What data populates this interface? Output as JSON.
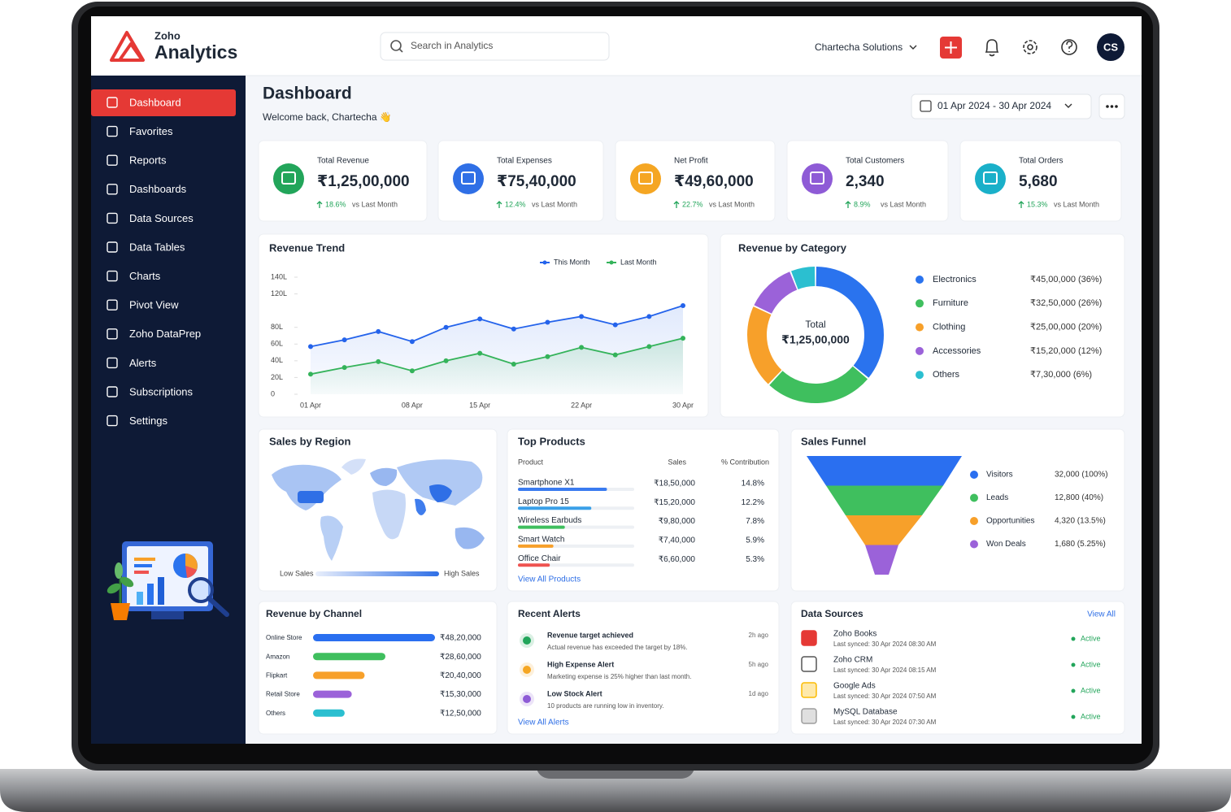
{
  "header": {
    "brand_small": "Zoho",
    "brand": "Analytics",
    "search": "Search in Analytics",
    "org": "Chartecha Solutions",
    "avatar": "CS"
  },
  "sidebar": {
    "items": [
      "Dashboard",
      "Favorites",
      "Reports",
      "Dashboards",
      "Data Sources",
      "Data Tables",
      "Charts",
      "Pivot View",
      "Zoho DataPrep",
      "Alerts",
      "Subscriptions",
      "Settings"
    ]
  },
  "page": {
    "title": "Dashboard",
    "welcome": "Welcome back, Chartecha 👋",
    "date_range": "01 Apr 2024 - 30 Apr 2024"
  },
  "kpis": [
    {
      "label": "Total Revenue",
      "value": "₹1,25,00,000",
      "change": "18.6%",
      "compare": "vs Last Month",
      "color": "#22a55a"
    },
    {
      "label": "Total Expenses",
      "value": "₹75,40,000",
      "change": "12.4%",
      "compare": "vs Last Month",
      "color": "#2f6fe6"
    },
    {
      "label": "Net Profit",
      "value": "₹49,60,000",
      "change": "22.7%",
      "compare": "vs Last Month",
      "color": "#f5a623"
    },
    {
      "label": "Total Customers",
      "value": "2,340",
      "change": "8.9%",
      "compare": "vs Last Month",
      "color": "#8e5bd6"
    },
    {
      "label": "Total Orders",
      "value": "5,680",
      "change": "15.3%",
      "compare": "vs Last Month",
      "color": "#1ab0c9"
    }
  ],
  "revenue_trend": {
    "type": "line",
    "title": "Revenue Trend",
    "categories": [
      "01 Apr",
      null,
      null,
      "08 Apr",
      null,
      "15 Apr",
      null,
      null,
      "22 Apr",
      null,
      null,
      "30 Apr"
    ],
    "series": [
      {
        "name": "This Month",
        "color": "#2463eb",
        "values": [
          57,
          65,
          75,
          63,
          80,
          90,
          78,
          86,
          93,
          83,
          93,
          106
        ]
      },
      {
        "name": "Last Month",
        "color": "#34b35a",
        "values": [
          24,
          32,
          39,
          28,
          40,
          49,
          36,
          45,
          56,
          47,
          57,
          67
        ]
      }
    ],
    "ylim": [
      0,
      140
    ],
    "yticks": [
      0,
      {
        "value": 20,
        "label": "20L"
      },
      {
        "value": 40,
        "label": "40L"
      },
      {
        "value": 60,
        "label": "60L"
      },
      {
        "value": 80,
        "label": "80L"
      },
      {
        "value": 120,
        "label": "120L"
      },
      {
        "value": 140,
        "label": "140L"
      }
    ],
    "grid": false
  },
  "revenue_by_category": {
    "type": "donut",
    "title": "Revenue by Category",
    "center_label": "Total",
    "center_value": "₹1,25,00,000",
    "categories": [
      "Electronics",
      "Furniture",
      "Clothing",
      "Accessories",
      "Others"
    ],
    "values": [
      36,
      26,
      20,
      12,
      6
    ],
    "value_labels": [
      "₹45,00,000 (36%)",
      "₹32,50,000 (26%)",
      "₹25,00,000 (20%)",
      "₹15,20,000 (12%)",
      "₹7,30,000 (6%)"
    ],
    "colors": [
      "#2a73ee",
      "#3fbf5e",
      "#f7a02a",
      "#9b62d9",
      "#2bbfd0"
    ]
  },
  "sales_by_region": {
    "title": "Sales by Region",
    "legend_low": "Low Sales",
    "legend_high": "High Sales"
  },
  "top_products": {
    "title": "Top Products",
    "columns": [
      "Product",
      "Sales",
      "% Contribution"
    ],
    "rows": [
      [
        "Smartphone X1",
        "₹18,50,000",
        "14.8%"
      ],
      [
        "Laptop Pro 15",
        "₹15,20,000",
        "12.2%"
      ],
      [
        "Wireless Earbuds",
        "₹9,80,000",
        "7.8%"
      ],
      [
        "Smart Watch",
        "₹7,40,000",
        "5.9%"
      ],
      [
        "Office Chair",
        "₹6,60,000",
        "5.3%"
      ]
    ],
    "bar_colors": [
      "#3a7bf0",
      "#3aa0e8",
      "#3fbf5e",
      "#f7a02a",
      "#ef5350"
    ],
    "link": "View All Products"
  },
  "sales_funnel": {
    "type": "funnel",
    "title": "Sales Funnel",
    "categories": [
      "Visitors",
      "Leads",
      "Opportunities",
      "Won Deals"
    ],
    "values": [
      32000,
      12800,
      4320,
      1680
    ],
    "value_labels": [
      "32,000 (100%)",
      "12,800 (40%)",
      "4,320 (13.5%)",
      "1,680 (5.25%)"
    ],
    "colors": [
      "#2a6ff0",
      "#3fbf5e",
      "#f7a02a",
      "#9b62d9"
    ]
  },
  "revenue_by_channel": {
    "type": "bar",
    "title": "Revenue by Channel",
    "categories": [
      "Online Store",
      "Amazon",
      "Flipkart",
      "Retail Store",
      "Others"
    ],
    "values": [
      4820000,
      2860000,
      2040000,
      1530000,
      1250000
    ],
    "value_labels": [
      "₹48,20,000",
      "₹28,60,000",
      "₹20,40,000",
      "₹15,30,000",
      "₹12,50,000"
    ],
    "colors": [
      "#2a6ff0",
      "#3fbf5e",
      "#f7a02a",
      "#9b62d9",
      "#2bbfd0"
    ]
  },
  "recent_alerts": {
    "title": "Recent Alerts",
    "items": [
      {
        "title": "Revenue target achieved",
        "description": "Actual revenue has exceeded the target by 18%.",
        "time": "2h ago"
      },
      {
        "title": "High Expense Alert",
        "description": "Marketing expense is 25% higher than last month.",
        "time": "5h ago"
      },
      {
        "title": "Low Stock Alert",
        "description": "10 products are running low in inventory.",
        "time": "1d ago"
      }
    ],
    "link": "View All Alerts"
  },
  "data_sources": {
    "title": "Data Sources",
    "link": "View All",
    "items": [
      {
        "name": "Zoho Books",
        "synced": "Last synced: 30 Apr 2024 08:30 AM",
        "status": "Active"
      },
      {
        "name": "Zoho CRM",
        "synced": "Last synced: 30 Apr 2024 08:15 AM",
        "status": "Active"
      },
      {
        "name": "Google Ads",
        "synced": "Last synced: 30 Apr 2024 07:50 AM",
        "status": "Active"
      },
      {
        "name": "MySQL Database",
        "synced": "Last synced: 30 Apr 2024 07:30 AM",
        "status": "Active"
      }
    ]
  }
}
